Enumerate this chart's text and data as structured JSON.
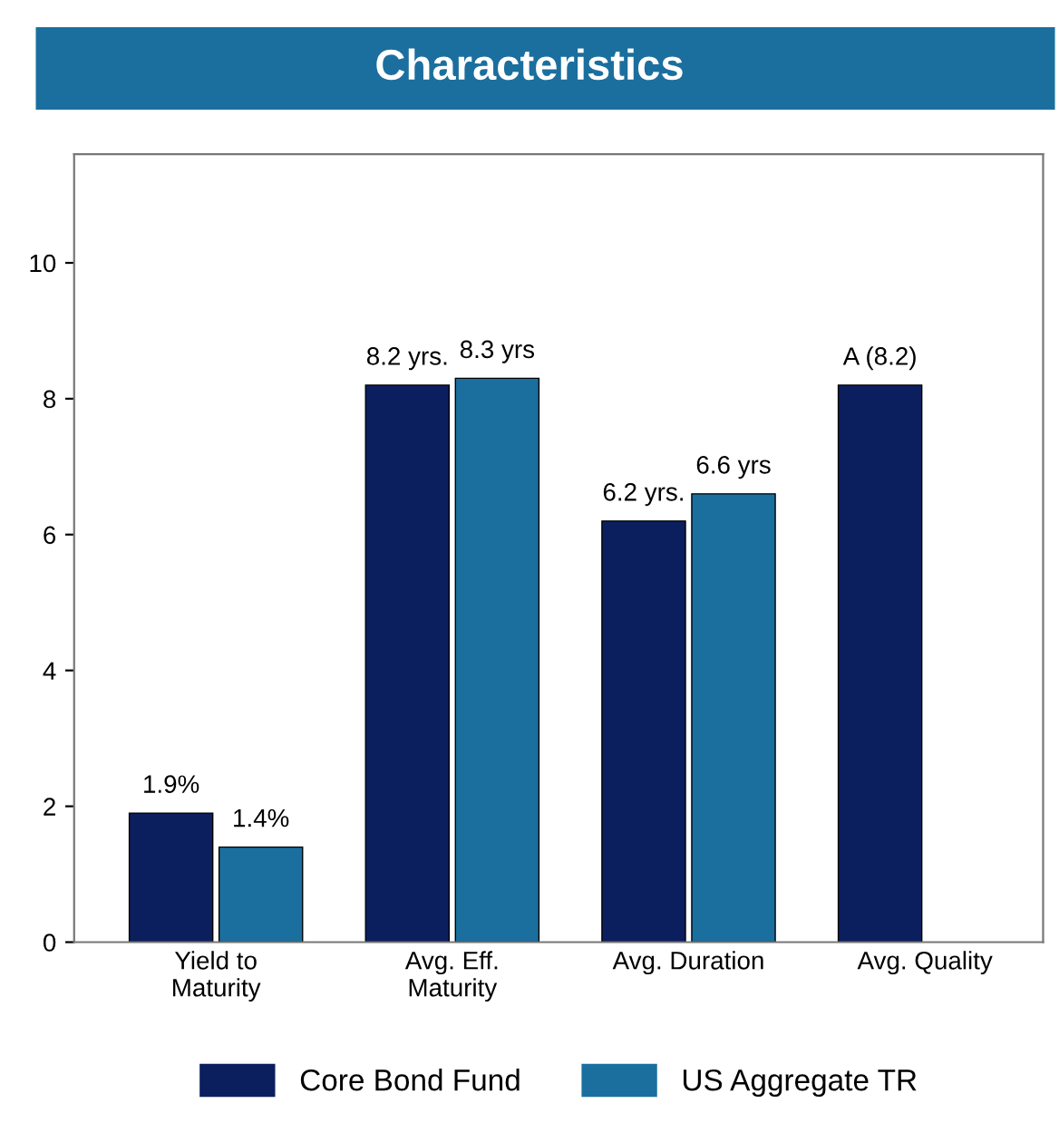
{
  "chart_data": {
    "type": "bar",
    "title": "Characteristics",
    "categories": [
      "Yield to\nMaturity",
      "Avg. Eff.\nMaturity",
      "Avg. Duration",
      "Avg. Quality"
    ],
    "series": [
      {
        "name": "Core Bond Fund",
        "color": "#0b1f5e",
        "values": [
          1.9,
          8.2,
          6.2,
          8.2
        ],
        "value_labels": [
          "1.9%",
          "8.2 yrs.",
          "6.2 yrs.",
          "A (8.2)"
        ]
      },
      {
        "name": "US Aggregate TR",
        "color": "#1a6f9f",
        "values": [
          1.4,
          8.3,
          6.6,
          null
        ],
        "value_labels": [
          "1.4%",
          "8.3 yrs",
          "6.6 yrs",
          null
        ]
      }
    ],
    "ylim": [
      0,
      11.6
    ],
    "yticks": [
      0,
      2,
      4,
      6,
      8,
      10
    ],
    "grid": false,
    "legend": "bottom"
  }
}
